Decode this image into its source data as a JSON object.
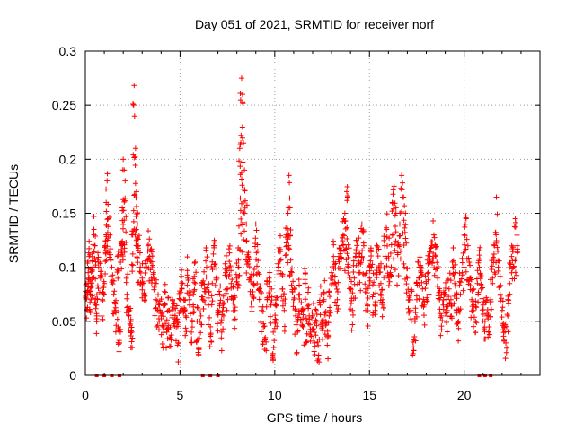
{
  "chart_data": {
    "type": "scatter",
    "title": "Day 051 of 2021, SRMTID for receiver norf",
    "xlabel": "GPS time / hours",
    "ylabel": "SRMTID / TECUs",
    "xlim": [
      0,
      24
    ],
    "ylim": [
      0,
      0.3
    ],
    "x_ticks": [
      0,
      5,
      10,
      15,
      20
    ],
    "x_tick_labels": [
      "0",
      "5",
      "10",
      "15",
      "20"
    ],
    "y_ticks": [
      0,
      0.05,
      0.1,
      0.15,
      0.2,
      0.25,
      0.3
    ],
    "y_tick_labels": [
      "0",
      "0.05",
      "0.1",
      "0.15",
      "0.2",
      "0.25",
      "0.3"
    ],
    "grid": true,
    "marker": "plus",
    "series_color": "#ff0000",
    "grid_color": "#a0a0a0",
    "baseline_markers_x": [
      0.6,
      1.0,
      1.4,
      1.8,
      6.2,
      6.6,
      7.0,
      20.8,
      21.1,
      21.4
    ],
    "series": [
      {
        "name": "SRMTID",
        "points": [
          [
            0.05,
            0.085
          ],
          [
            0.1,
            0.06
          ],
          [
            0.15,
            0.095
          ],
          [
            0.2,
            0.11
          ],
          [
            0.25,
            0.078
          ],
          [
            0.3,
            0.07
          ],
          [
            0.35,
            0.09
          ],
          [
            0.4,
            0.1
          ],
          [
            0.45,
            0.135
          ],
          [
            0.5,
            0.12
          ],
          [
            0.55,
            0.065
          ],
          [
            0.6,
            0.055
          ],
          [
            0.7,
            0.1
          ],
          [
            0.8,
            0.09
          ],
          [
            0.9,
            0.07
          ],
          [
            1.0,
            0.085
          ],
          [
            1.05,
            0.12
          ],
          [
            1.1,
            0.16
          ],
          [
            1.15,
            0.18
          ],
          [
            1.2,
            0.145
          ],
          [
            1.3,
            0.13
          ],
          [
            1.4,
            0.1
          ],
          [
            1.5,
            0.075
          ],
          [
            1.6,
            0.06
          ],
          [
            1.7,
            0.11
          ],
          [
            1.75,
            0.045
          ],
          [
            1.8,
            0.03
          ],
          [
            1.9,
            0.12
          ],
          [
            1.95,
            0.155
          ],
          [
            2.0,
            0.2
          ],
          [
            2.05,
            0.19
          ],
          [
            2.1,
            0.18
          ],
          [
            2.2,
            0.075
          ],
          [
            2.3,
            0.055
          ],
          [
            2.4,
            0.05
          ],
          [
            2.45,
            0.04
          ],
          [
            2.5,
            0.13
          ],
          [
            2.55,
            0.25
          ],
          [
            2.6,
            0.24
          ],
          [
            2.65,
            0.21
          ],
          [
            2.7,
            0.17
          ],
          [
            2.75,
            0.14
          ],
          [
            2.8,
            0.12
          ],
          [
            2.9,
            0.1
          ],
          [
            3.0,
            0.09
          ],
          [
            3.1,
            0.075
          ],
          [
            3.2,
            0.1
          ],
          [
            3.3,
            0.115
          ],
          [
            3.4,
            0.11
          ],
          [
            3.5,
            0.105
          ],
          [
            3.6,
            0.095
          ],
          [
            3.7,
            0.07
          ],
          [
            3.8,
            0.06
          ],
          [
            3.9,
            0.05
          ],
          [
            4.0,
            0.055
          ],
          [
            4.1,
            0.045
          ],
          [
            4.2,
            0.065
          ],
          [
            4.3,
            0.04
          ],
          [
            4.4,
            0.06
          ],
          [
            4.5,
            0.035
          ],
          [
            4.6,
            0.07
          ],
          [
            4.7,
            0.05
          ],
          [
            4.8,
            0.045
          ],
          [
            4.9,
            0.03
          ],
          [
            5.0,
            0.06
          ],
          [
            5.1,
            0.08
          ],
          [
            5.2,
            0.07
          ],
          [
            5.3,
            0.055
          ],
          [
            5.4,
            0.09
          ],
          [
            5.5,
            0.065
          ],
          [
            5.6,
            0.04
          ],
          [
            5.7,
            0.075
          ],
          [
            5.8,
            0.085
          ],
          [
            5.9,
            0.05
          ],
          [
            6.0,
            0.025
          ],
          [
            6.1,
            0.055
          ],
          [
            6.2,
            0.07
          ],
          [
            6.3,
            0.08
          ],
          [
            6.4,
            0.1
          ],
          [
            6.5,
            0.065
          ],
          [
            6.6,
            0.045
          ],
          [
            6.7,
            0.085
          ],
          [
            6.8,
            0.12
          ],
          [
            6.9,
            0.09
          ],
          [
            7.0,
            0.06
          ],
          [
            7.1,
            0.075
          ],
          [
            7.2,
            0.04
          ],
          [
            7.3,
            0.055
          ],
          [
            7.4,
            0.095
          ],
          [
            7.5,
            0.08
          ],
          [
            7.6,
            0.1
          ],
          [
            7.7,
            0.085
          ],
          [
            7.8,
            0.07
          ],
          [
            7.9,
            0.06
          ],
          [
            8.0,
            0.09
          ],
          [
            8.1,
            0.1
          ],
          [
            8.15,
            0.21
          ],
          [
            8.2,
            0.255
          ],
          [
            8.25,
            0.275
          ],
          [
            8.3,
            0.26
          ],
          [
            8.35,
            0.215
          ],
          [
            8.4,
            0.19
          ],
          [
            8.5,
            0.14
          ],
          [
            8.6,
            0.11
          ],
          [
            8.7,
            0.09
          ],
          [
            8.8,
            0.075
          ],
          [
            8.9,
            0.085
          ],
          [
            9.0,
            0.14
          ],
          [
            9.1,
            0.115
          ],
          [
            9.2,
            0.08
          ],
          [
            9.3,
            0.06
          ],
          [
            9.4,
            0.045
          ],
          [
            9.5,
            0.035
          ],
          [
            9.6,
            0.07
          ],
          [
            9.7,
            0.09
          ],
          [
            9.8,
            0.065
          ],
          [
            9.9,
            0.02
          ],
          [
            10.0,
            0.05
          ],
          [
            10.1,
            0.065
          ],
          [
            10.2,
            0.1
          ],
          [
            10.3,
            0.115
          ],
          [
            10.4,
            0.08
          ],
          [
            10.5,
            0.06
          ],
          [
            10.6,
            0.13
          ],
          [
            10.7,
            0.15
          ],
          [
            10.75,
            0.185
          ],
          [
            10.8,
            0.155
          ],
          [
            10.9,
            0.095
          ],
          [
            11.0,
            0.07
          ],
          [
            11.1,
            0.055
          ],
          [
            11.2,
            0.04
          ],
          [
            11.3,
            0.075
          ],
          [
            11.4,
            0.06
          ],
          [
            11.5,
            0.045
          ],
          [
            11.6,
            0.085
          ],
          [
            11.7,
            0.05
          ],
          [
            11.8,
            0.065
          ],
          [
            11.9,
            0.04
          ],
          [
            12.0,
            0.055
          ],
          [
            12.1,
            0.03
          ],
          [
            12.2,
            0.05
          ],
          [
            12.3,
            0.015
          ],
          [
            12.4,
            0.065
          ],
          [
            12.5,
            0.045
          ],
          [
            12.6,
            0.07
          ],
          [
            12.7,
            0.05
          ],
          [
            12.8,
            0.035
          ],
          [
            12.9,
            0.06
          ],
          [
            13.0,
            0.095
          ],
          [
            13.1,
            0.11
          ],
          [
            13.2,
            0.085
          ],
          [
            13.3,
            0.07
          ],
          [
            13.4,
            0.105
          ],
          [
            13.5,
            0.12
          ],
          [
            13.6,
            0.13
          ],
          [
            13.7,
            0.15
          ],
          [
            13.8,
            0.17
          ],
          [
            13.85,
            0.165
          ],
          [
            13.9,
            0.1
          ],
          [
            14.0,
            0.08
          ],
          [
            14.1,
            0.06
          ],
          [
            14.2,
            0.09
          ],
          [
            14.3,
            0.125
          ],
          [
            14.4,
            0.11
          ],
          [
            14.5,
            0.095
          ],
          [
            14.6,
            0.14
          ],
          [
            14.7,
            0.12
          ],
          [
            14.8,
            0.08
          ],
          [
            14.9,
            0.065
          ],
          [
            15.0,
            0.09
          ],
          [
            15.1,
            0.1
          ],
          [
            15.2,
            0.075
          ],
          [
            15.3,
            0.06
          ],
          [
            15.4,
            0.115
          ],
          [
            15.5,
            0.1
          ],
          [
            15.6,
            0.085
          ],
          [
            15.7,
            0.07
          ],
          [
            15.8,
            0.12
          ],
          [
            15.9,
            0.135
          ],
          [
            16.0,
            0.11
          ],
          [
            16.1,
            0.095
          ],
          [
            16.2,
            0.16
          ],
          [
            16.3,
            0.175
          ],
          [
            16.4,
            0.15
          ],
          [
            16.5,
            0.12
          ],
          [
            16.6,
            0.14
          ],
          [
            16.7,
            0.185
          ],
          [
            16.8,
            0.165
          ],
          [
            16.9,
            0.15
          ],
          [
            17.0,
            0.09
          ],
          [
            17.1,
            0.07
          ],
          [
            17.2,
            0.06
          ],
          [
            17.3,
            0.02
          ],
          [
            17.4,
            0.05
          ],
          [
            17.5,
            0.07
          ],
          [
            17.6,
            0.09
          ],
          [
            17.7,
            0.1
          ],
          [
            17.8,
            0.08
          ],
          [
            17.9,
            0.065
          ],
          [
            18.0,
            0.085
          ],
          [
            18.1,
            0.095
          ],
          [
            18.2,
            0.105
          ],
          [
            18.3,
            0.12
          ],
          [
            18.4,
            0.13
          ],
          [
            18.5,
            0.11
          ],
          [
            18.6,
            0.09
          ],
          [
            18.7,
            0.07
          ],
          [
            18.8,
            0.055
          ],
          [
            18.9,
            0.065
          ],
          [
            19.0,
            0.075
          ],
          [
            19.1,
            0.06
          ],
          [
            19.2,
            0.08
          ],
          [
            19.3,
            0.07
          ],
          [
            19.4,
            0.1
          ],
          [
            19.5,
            0.085
          ],
          [
            19.6,
            0.06
          ],
          [
            19.7,
            0.05
          ],
          [
            19.8,
            0.075
          ],
          [
            19.9,
            0.095
          ],
          [
            20.0,
            0.13
          ],
          [
            20.1,
            0.145
          ],
          [
            20.2,
            0.12
          ],
          [
            20.3,
            0.09
          ],
          [
            20.4,
            0.07
          ],
          [
            20.5,
            0.06
          ],
          [
            20.6,
            0.05
          ],
          [
            20.7,
            0.085
          ],
          [
            20.8,
            0.1
          ],
          [
            20.9,
            0.08
          ],
          [
            21.0,
            0.065
          ],
          [
            21.1,
            0.05
          ],
          [
            21.2,
            0.055
          ],
          [
            21.3,
            0.04
          ],
          [
            21.4,
            0.07
          ],
          [
            21.5,
            0.09
          ],
          [
            21.6,
            0.12
          ],
          [
            21.7,
            0.165
          ],
          [
            21.8,
            0.1
          ],
          [
            21.9,
            0.075
          ],
          [
            22.0,
            0.06
          ],
          [
            22.1,
            0.045
          ],
          [
            22.2,
            0.03
          ],
          [
            22.3,
            0.055
          ],
          [
            22.4,
            0.085
          ],
          [
            22.5,
            0.11
          ],
          [
            22.6,
            0.1
          ],
          [
            22.7,
            0.145
          ],
          [
            22.8,
            0.12
          ]
        ]
      }
    ]
  }
}
